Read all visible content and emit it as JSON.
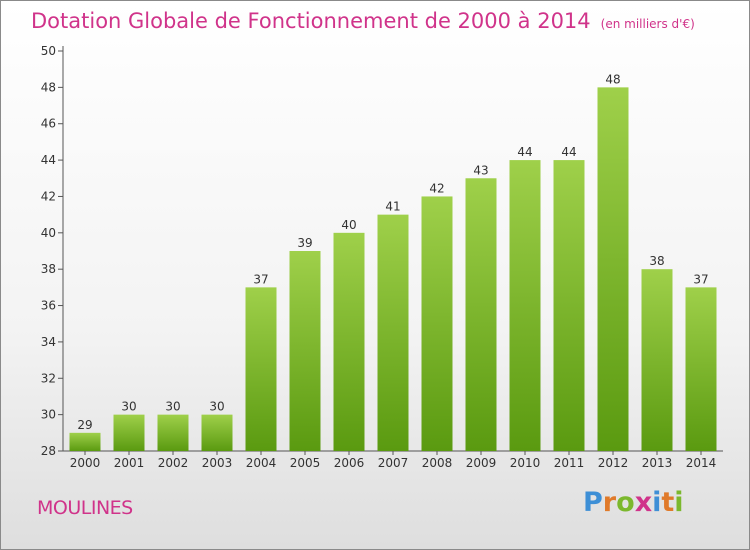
{
  "header": {
    "title": "Dotation Globale de Fonctionnement de 2000 à 2014",
    "subtitle": "(en milliers d'€)"
  },
  "commune": "MOULINES",
  "logo": {
    "text": "Proxiti",
    "letters": [
      {
        "ch": "P",
        "color": "#3d8fd6"
      },
      {
        "ch": "r",
        "color": "#e07a2a"
      },
      {
        "ch": "o",
        "color": "#7bb82d"
      },
      {
        "ch": "x",
        "color": "#d0338a"
      },
      {
        "ch": "i",
        "color": "#3d8fd6"
      },
      {
        "ch": "t",
        "color": "#e07a2a"
      },
      {
        "ch": "i",
        "color": "#7bb82d"
      }
    ]
  },
  "chart_data": {
    "type": "bar",
    "categories": [
      "2000",
      "2001",
      "2002",
      "2003",
      "2004",
      "2005",
      "2006",
      "2007",
      "2008",
      "2009",
      "2010",
      "2011",
      "2012",
      "2013",
      "2014"
    ],
    "values": [
      29,
      30,
      30,
      30,
      37,
      39,
      40,
      41,
      42,
      43,
      44,
      44,
      48,
      38,
      37
    ],
    "ylim": [
      28,
      50
    ],
    "yticks": [
      28,
      30,
      32,
      34,
      36,
      38,
      40,
      42,
      44,
      46,
      48,
      50
    ],
    "grid": false,
    "bar_color_top": "#9fd04a",
    "bar_color_bottom": "#5a9a10"
  }
}
